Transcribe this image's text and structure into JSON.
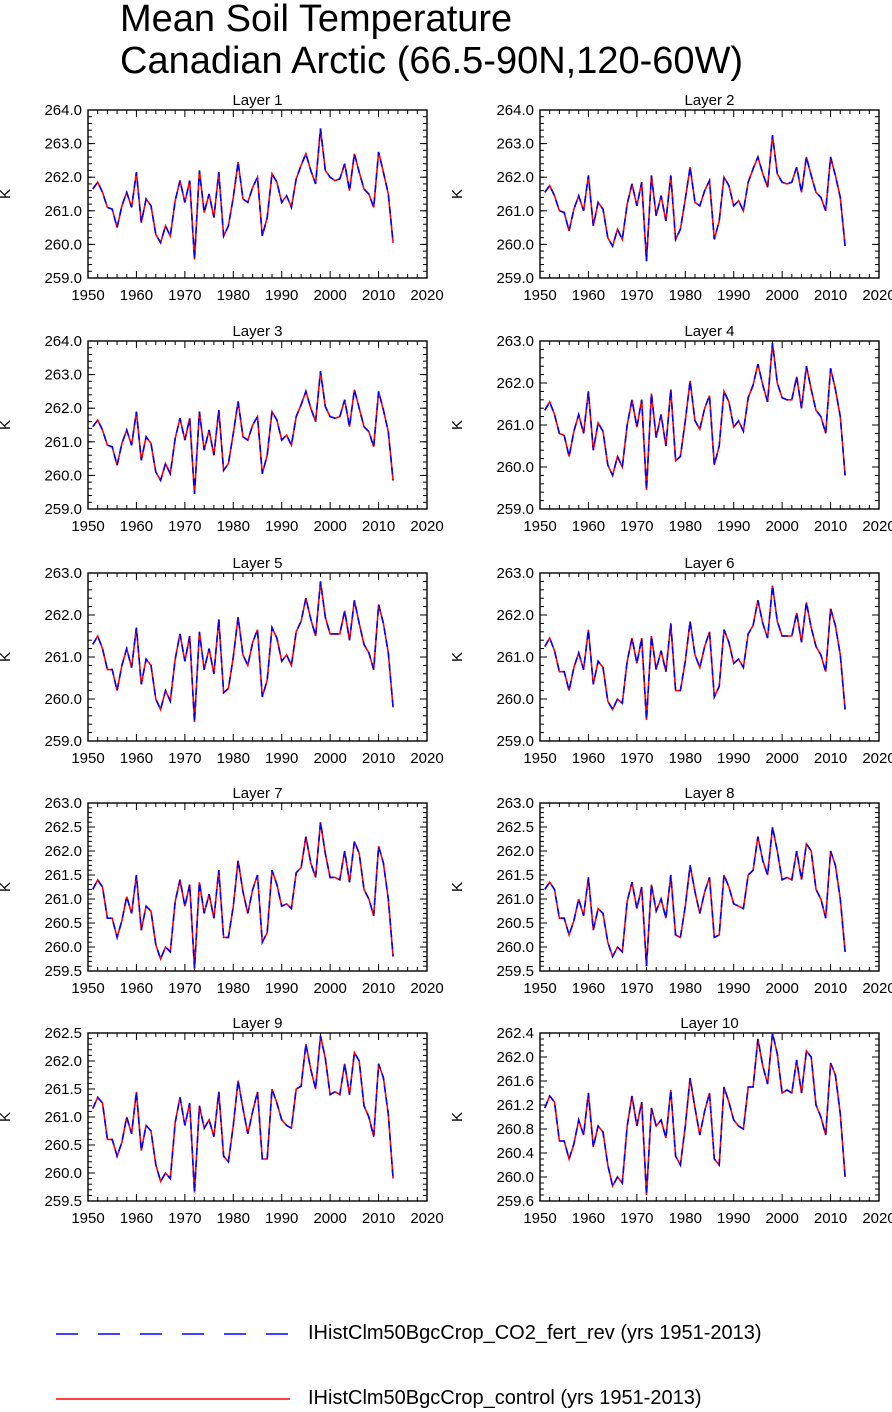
{
  "title_line1": "Mean Soil Temperature",
  "title_line2": "Canadian Arctic (66.5-90N,120-60W)",
  "legend": [
    {
      "label": "IHistClm50BgcCrop_CO2_fert_rev (yrs 1951-2013)",
      "color": "#0000ff",
      "dash": "dashed"
    },
    {
      "label": "IHistClm50BgcCrop_control (yrs 1951-2013)",
      "color": "#ff0000",
      "dash": "solid"
    }
  ],
  "chart_data": {
    "type": "line",
    "years": [
      1951,
      1952,
      1953,
      1954,
      1955,
      1956,
      1957,
      1958,
      1959,
      1960,
      1961,
      1962,
      1963,
      1964,
      1965,
      1966,
      1967,
      1968,
      1969,
      1970,
      1971,
      1972,
      1973,
      1974,
      1975,
      1976,
      1977,
      1978,
      1979,
      1980,
      1981,
      1982,
      1983,
      1984,
      1985,
      1986,
      1987,
      1988,
      1989,
      1990,
      1991,
      1992,
      1993,
      1994,
      1995,
      1996,
      1997,
      1998,
      1999,
      2000,
      2001,
      2002,
      2003,
      2004,
      2005,
      2006,
      2007,
      2008,
      2009,
      2010,
      2011,
      2012,
      2013
    ],
    "xlim": [
      1950,
      2020
    ],
    "xticks": [
      1950,
      1960,
      1970,
      1980,
      1990,
      2000,
      2010,
      2020
    ],
    "ylabel": "K",
    "panels": [
      {
        "title": "Layer 1",
        "ylim": [
          259.0,
          264.0
        ],
        "yticks": [
          "259.0",
          "260.0",
          "261.0",
          "262.0",
          "263.0",
          "264.0"
        ],
        "minor_step": 0.2,
        "values": [
          261.65,
          261.85,
          261.55,
          261.1,
          261.05,
          260.5,
          261.15,
          261.55,
          261.1,
          262.15,
          260.65,
          261.35,
          261.15,
          260.3,
          260.05,
          260.55,
          260.25,
          261.3,
          261.9,
          261.25,
          261.9,
          259.55,
          262.2,
          260.95,
          261.5,
          260.8,
          262.15,
          260.25,
          260.55,
          261.4,
          262.45,
          261.35,
          261.25,
          261.7,
          262.0,
          260.25,
          260.8,
          262.1,
          261.85,
          261.25,
          261.45,
          261.1,
          261.95,
          262.35,
          262.7,
          262.2,
          261.8,
          263.45,
          262.2,
          262.0,
          261.9,
          261.95,
          262.4,
          261.6,
          262.7,
          262.15,
          261.65,
          261.5,
          261.1,
          262.75,
          262.15,
          261.5,
          260.05
        ]
      },
      {
        "title": "Layer 2",
        "ylim": [
          259.0,
          264.0
        ],
        "yticks": [
          "259.0",
          "260.0",
          "261.0",
          "262.0",
          "263.0",
          "264.0"
        ],
        "minor_step": 0.2,
        "values": [
          261.55,
          261.75,
          261.45,
          261.0,
          260.95,
          260.4,
          261.05,
          261.45,
          261.0,
          262.05,
          260.55,
          261.25,
          261.05,
          260.2,
          259.95,
          260.45,
          260.15,
          261.2,
          261.8,
          261.15,
          261.85,
          259.5,
          262.05,
          260.85,
          261.45,
          260.7,
          262.05,
          260.15,
          260.45,
          261.35,
          262.3,
          261.25,
          261.15,
          261.6,
          261.9,
          260.15,
          260.7,
          262.0,
          261.75,
          261.15,
          261.3,
          261.0,
          261.85,
          262.25,
          262.6,
          262.1,
          261.7,
          263.25,
          262.1,
          261.85,
          261.8,
          261.85,
          262.3,
          261.55,
          262.6,
          262.05,
          261.55,
          261.4,
          261.0,
          262.6,
          262.05,
          261.4,
          259.95
        ]
      },
      {
        "title": "Layer 3",
        "ylim": [
          259.0,
          264.0
        ],
        "yticks": [
          "259.0",
          "260.0",
          "261.0",
          "262.0",
          "263.0",
          "264.0"
        ],
        "minor_step": 0.2,
        "values": [
          261.45,
          261.65,
          261.35,
          260.9,
          260.85,
          260.3,
          260.95,
          261.35,
          260.9,
          261.9,
          260.45,
          261.15,
          260.95,
          260.1,
          259.85,
          260.35,
          260.05,
          261.1,
          261.7,
          261.05,
          261.7,
          259.45,
          261.9,
          260.75,
          261.35,
          260.6,
          261.95,
          260.15,
          260.35,
          261.25,
          262.2,
          261.15,
          261.05,
          261.5,
          261.75,
          260.05,
          260.6,
          261.9,
          261.65,
          261.05,
          261.2,
          260.9,
          261.75,
          262.1,
          262.5,
          262.0,
          261.6,
          263.1,
          262.05,
          261.75,
          261.7,
          261.75,
          262.25,
          261.45,
          262.55,
          262.0,
          261.45,
          261.3,
          260.85,
          262.5,
          261.95,
          261.3,
          259.85
        ]
      },
      {
        "title": "Layer 4",
        "ylim": [
          259.0,
          263.0
        ],
        "yticks": [
          "259.0",
          "260.0",
          "261.0",
          "262.0",
          "263.0"
        ],
        "minor_step": 0.2,
        "values": [
          261.35,
          261.55,
          261.25,
          260.8,
          260.75,
          260.25,
          260.85,
          261.25,
          260.8,
          261.8,
          260.4,
          261.05,
          260.85,
          260.05,
          259.8,
          260.25,
          260.0,
          261.0,
          261.6,
          260.95,
          261.6,
          259.45,
          261.75,
          260.7,
          261.25,
          260.5,
          261.85,
          260.15,
          260.25,
          261.1,
          262.05,
          261.1,
          260.9,
          261.4,
          261.7,
          260.05,
          260.5,
          261.8,
          261.55,
          260.95,
          261.1,
          260.85,
          261.65,
          261.95,
          262.45,
          261.95,
          261.55,
          262.95,
          262.0,
          261.65,
          261.6,
          261.6,
          262.15,
          261.4,
          262.4,
          261.85,
          261.35,
          261.2,
          260.8,
          262.35,
          261.85,
          261.2,
          259.8
        ]
      },
      {
        "title": "Layer 5",
        "ylim": [
          259.0,
          263.0
        ],
        "yticks": [
          "259.0",
          "260.0",
          "261.0",
          "262.0",
          "263.0"
        ],
        "minor_step": 0.2,
        "values": [
          261.3,
          261.5,
          261.2,
          260.7,
          260.7,
          260.2,
          260.8,
          261.2,
          260.75,
          261.7,
          260.35,
          260.95,
          260.8,
          260.0,
          259.75,
          260.2,
          259.95,
          260.95,
          261.55,
          260.9,
          261.5,
          259.45,
          261.6,
          260.7,
          261.2,
          260.6,
          261.9,
          260.15,
          260.25,
          261.0,
          261.95,
          261.05,
          260.8,
          261.35,
          261.65,
          260.05,
          260.45,
          261.7,
          261.45,
          260.9,
          261.05,
          260.8,
          261.6,
          261.85,
          262.4,
          261.9,
          261.5,
          262.8,
          261.95,
          261.55,
          261.55,
          261.55,
          262.1,
          261.4,
          262.35,
          261.8,
          261.3,
          261.1,
          260.7,
          262.25,
          261.8,
          261.1,
          259.8
        ]
      },
      {
        "title": "Layer 6",
        "ylim": [
          259.0,
          263.0
        ],
        "yticks": [
          "259.0",
          "260.0",
          "261.0",
          "262.0",
          "263.0"
        ],
        "minor_step": 0.2,
        "values": [
          261.25,
          261.45,
          261.15,
          260.65,
          260.65,
          260.2,
          260.75,
          261.1,
          260.7,
          261.65,
          260.35,
          260.9,
          260.75,
          259.95,
          259.75,
          260.0,
          259.9,
          260.9,
          261.45,
          260.85,
          261.45,
          259.5,
          261.5,
          260.7,
          261.15,
          260.65,
          261.8,
          260.2,
          260.2,
          260.9,
          261.85,
          261.05,
          260.75,
          261.25,
          261.6,
          260.05,
          260.3,
          261.65,
          261.35,
          260.85,
          260.95,
          260.75,
          261.55,
          261.75,
          262.35,
          261.8,
          261.45,
          262.7,
          261.85,
          261.5,
          261.5,
          261.5,
          262.05,
          261.35,
          262.3,
          261.7,
          261.25,
          261.05,
          260.65,
          262.15,
          261.75,
          261.05,
          259.75
        ]
      },
      {
        "title": "Layer 7",
        "ylim": [
          259.5,
          263.0
        ],
        "yticks": [
          "259.5",
          "260.0",
          "260.5",
          "261.0",
          "261.5",
          "262.0",
          "262.5",
          "263.0"
        ],
        "minor_step": 0.1,
        "values": [
          261.2,
          261.4,
          261.25,
          260.6,
          260.6,
          260.2,
          260.55,
          261.05,
          260.7,
          261.5,
          260.35,
          260.85,
          260.75,
          260.05,
          259.75,
          260.0,
          259.9,
          260.95,
          261.4,
          260.85,
          261.3,
          259.55,
          261.35,
          260.7,
          261.1,
          260.6,
          261.6,
          260.2,
          260.2,
          260.85,
          261.8,
          261.15,
          260.7,
          261.2,
          261.5,
          260.1,
          260.3,
          261.6,
          261.3,
          260.85,
          260.9,
          260.8,
          261.55,
          261.65,
          262.3,
          261.75,
          261.45,
          262.6,
          261.95,
          261.45,
          261.45,
          261.4,
          262.0,
          261.35,
          262.2,
          261.95,
          261.2,
          261.0,
          260.65,
          262.1,
          261.75,
          261.0,
          259.8
        ]
      },
      {
        "title": "Layer 8",
        "ylim": [
          259.5,
          263.0
        ],
        "yticks": [
          "259.5",
          "260.0",
          "260.5",
          "261.0",
          "261.5",
          "262.0",
          "262.5",
          "263.0"
        ],
        "minor_step": 0.1,
        "values": [
          261.2,
          261.35,
          261.2,
          260.6,
          260.6,
          260.25,
          260.55,
          261.0,
          260.65,
          261.45,
          260.35,
          260.8,
          260.7,
          260.1,
          259.8,
          260.0,
          259.9,
          260.95,
          261.35,
          260.8,
          261.25,
          259.6,
          261.3,
          260.75,
          261.0,
          260.6,
          261.5,
          260.25,
          260.2,
          260.85,
          261.7,
          261.15,
          260.7,
          261.15,
          261.45,
          260.2,
          260.25,
          261.5,
          261.25,
          260.9,
          260.85,
          260.8,
          261.5,
          261.6,
          262.3,
          261.8,
          261.5,
          262.5,
          262.0,
          261.4,
          261.45,
          261.4,
          262.0,
          261.4,
          262.15,
          262.0,
          261.2,
          261.0,
          260.6,
          262.0,
          261.7,
          261.0,
          259.9
        ]
      },
      {
        "title": "Layer 9",
        "ylim": [
          259.5,
          262.5
        ],
        "yticks": [
          "259.5",
          "260.0",
          "260.5",
          "261.0",
          "261.5",
          "262.0",
          "262.5"
        ],
        "minor_step": 0.1,
        "values": [
          261.15,
          261.35,
          261.25,
          260.6,
          260.6,
          260.3,
          260.55,
          261.0,
          260.7,
          261.45,
          260.4,
          260.85,
          260.75,
          260.15,
          259.85,
          260.0,
          259.9,
          260.9,
          261.35,
          260.85,
          261.25,
          259.65,
          261.2,
          260.8,
          260.95,
          260.65,
          261.45,
          260.3,
          260.2,
          260.85,
          261.65,
          261.15,
          260.7,
          261.1,
          261.45,
          260.25,
          260.25,
          261.5,
          261.25,
          260.95,
          260.85,
          260.8,
          261.5,
          261.55,
          262.3,
          261.85,
          261.5,
          262.45,
          262.05,
          261.4,
          261.45,
          261.4,
          261.95,
          261.4,
          262.15,
          262.0,
          261.2,
          261.0,
          260.65,
          261.95,
          261.7,
          261.05,
          259.9
        ]
      },
      {
        "title": "Layer 10",
        "ylim": [
          259.6,
          262.4
        ],
        "yticks": [
          "259.6",
          "260.0",
          "260.4",
          "260.8",
          "261.2",
          "261.6",
          "262.0",
          "262.4"
        ],
        "minor_step": 0.1,
        "values": [
          261.15,
          261.35,
          261.25,
          260.6,
          260.6,
          260.3,
          260.55,
          260.95,
          260.7,
          261.4,
          260.5,
          260.85,
          260.75,
          260.2,
          259.85,
          260.0,
          259.9,
          260.85,
          261.35,
          260.85,
          261.25,
          259.7,
          261.15,
          260.85,
          260.95,
          260.65,
          261.45,
          260.35,
          260.2,
          260.85,
          261.65,
          261.15,
          260.7,
          261.1,
          261.4,
          260.3,
          260.2,
          261.5,
          261.25,
          260.95,
          260.85,
          260.8,
          261.5,
          261.5,
          262.3,
          261.85,
          261.55,
          262.4,
          262.05,
          261.4,
          261.45,
          261.4,
          261.95,
          261.4,
          262.1,
          262.0,
          261.2,
          261.0,
          260.7,
          261.9,
          261.7,
          261.05,
          260.0
        ]
      }
    ]
  }
}
